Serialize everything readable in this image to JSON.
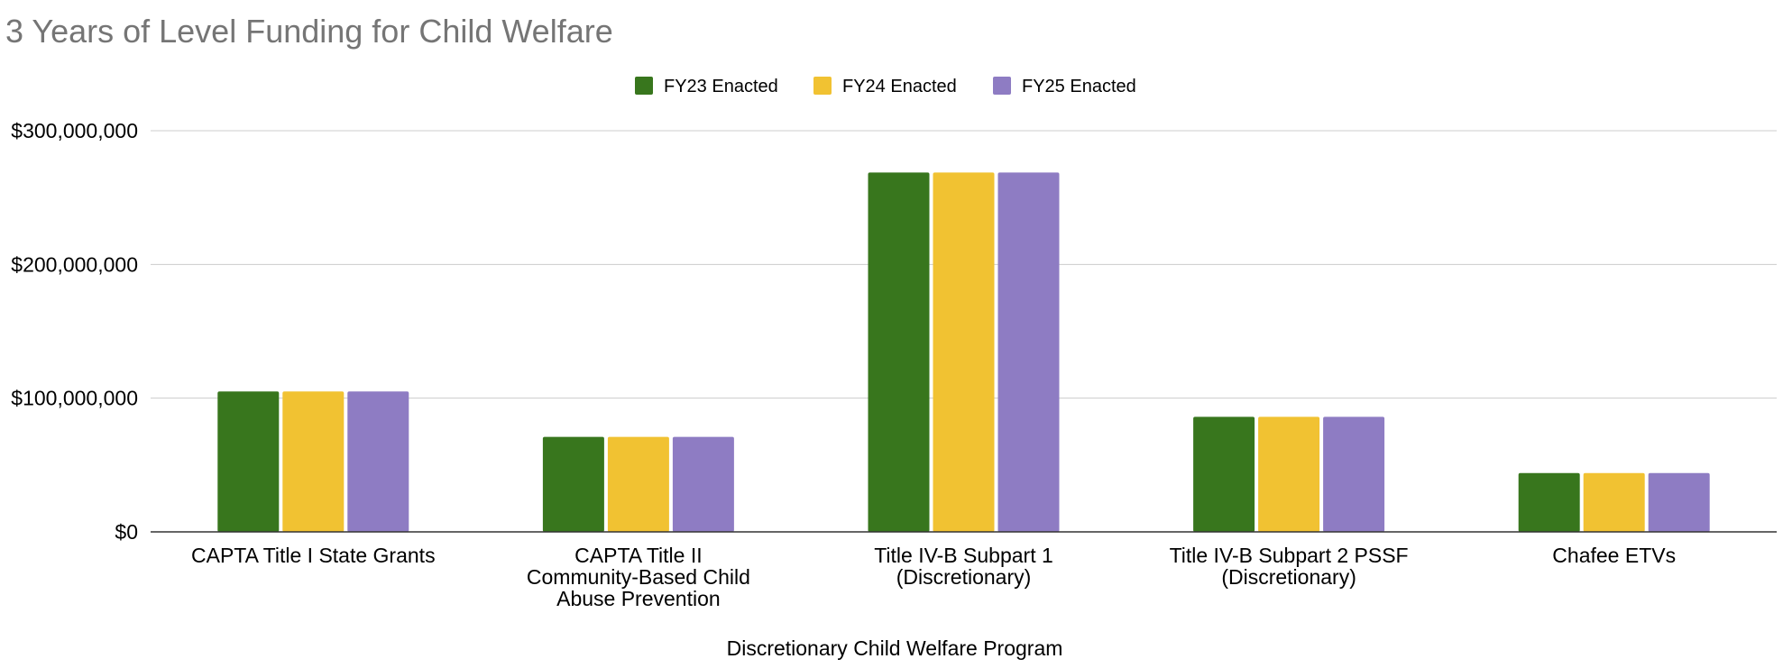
{
  "chart_data": {
    "type": "bar",
    "title": "3 Years of Level Funding for Child Welfare",
    "xlabel": "Discretionary Child Welfare Program",
    "ylabel": "",
    "ylim": [
      0,
      300000000
    ],
    "yticks": [
      0,
      100000000,
      200000000,
      300000000
    ],
    "ytick_labels": [
      "$0",
      "$100,000,000",
      "$200,000,000",
      "$300,000,000"
    ],
    "grid": true,
    "legend_position": "top-center",
    "categories": [
      [
        "CAPTA Title I State Grants"
      ],
      [
        "CAPTA Title II",
        "Community-Based Child",
        "Abuse Prevention"
      ],
      [
        "Title IV-B Subpart 1",
        "(Discretionary)"
      ],
      [
        "Title IV-B Subpart 2 PSSF",
        "(Discretionary)"
      ],
      [
        "Chafee ETVs"
      ]
    ],
    "series": [
      {
        "name": "FY23 Enacted",
        "color": "#38761d",
        "values": [
          105000000,
          71000000,
          268700000,
          86000000,
          44000000
        ]
      },
      {
        "name": "FY24 Enacted",
        "color": "#f1c232",
        "values": [
          105000000,
          71000000,
          268700000,
          86000000,
          44000000
        ]
      },
      {
        "name": "FY25 Enacted",
        "color": "#8e7cc3",
        "values": [
          105000000,
          71000000,
          268700000,
          86000000,
          44000000
        ]
      }
    ]
  }
}
